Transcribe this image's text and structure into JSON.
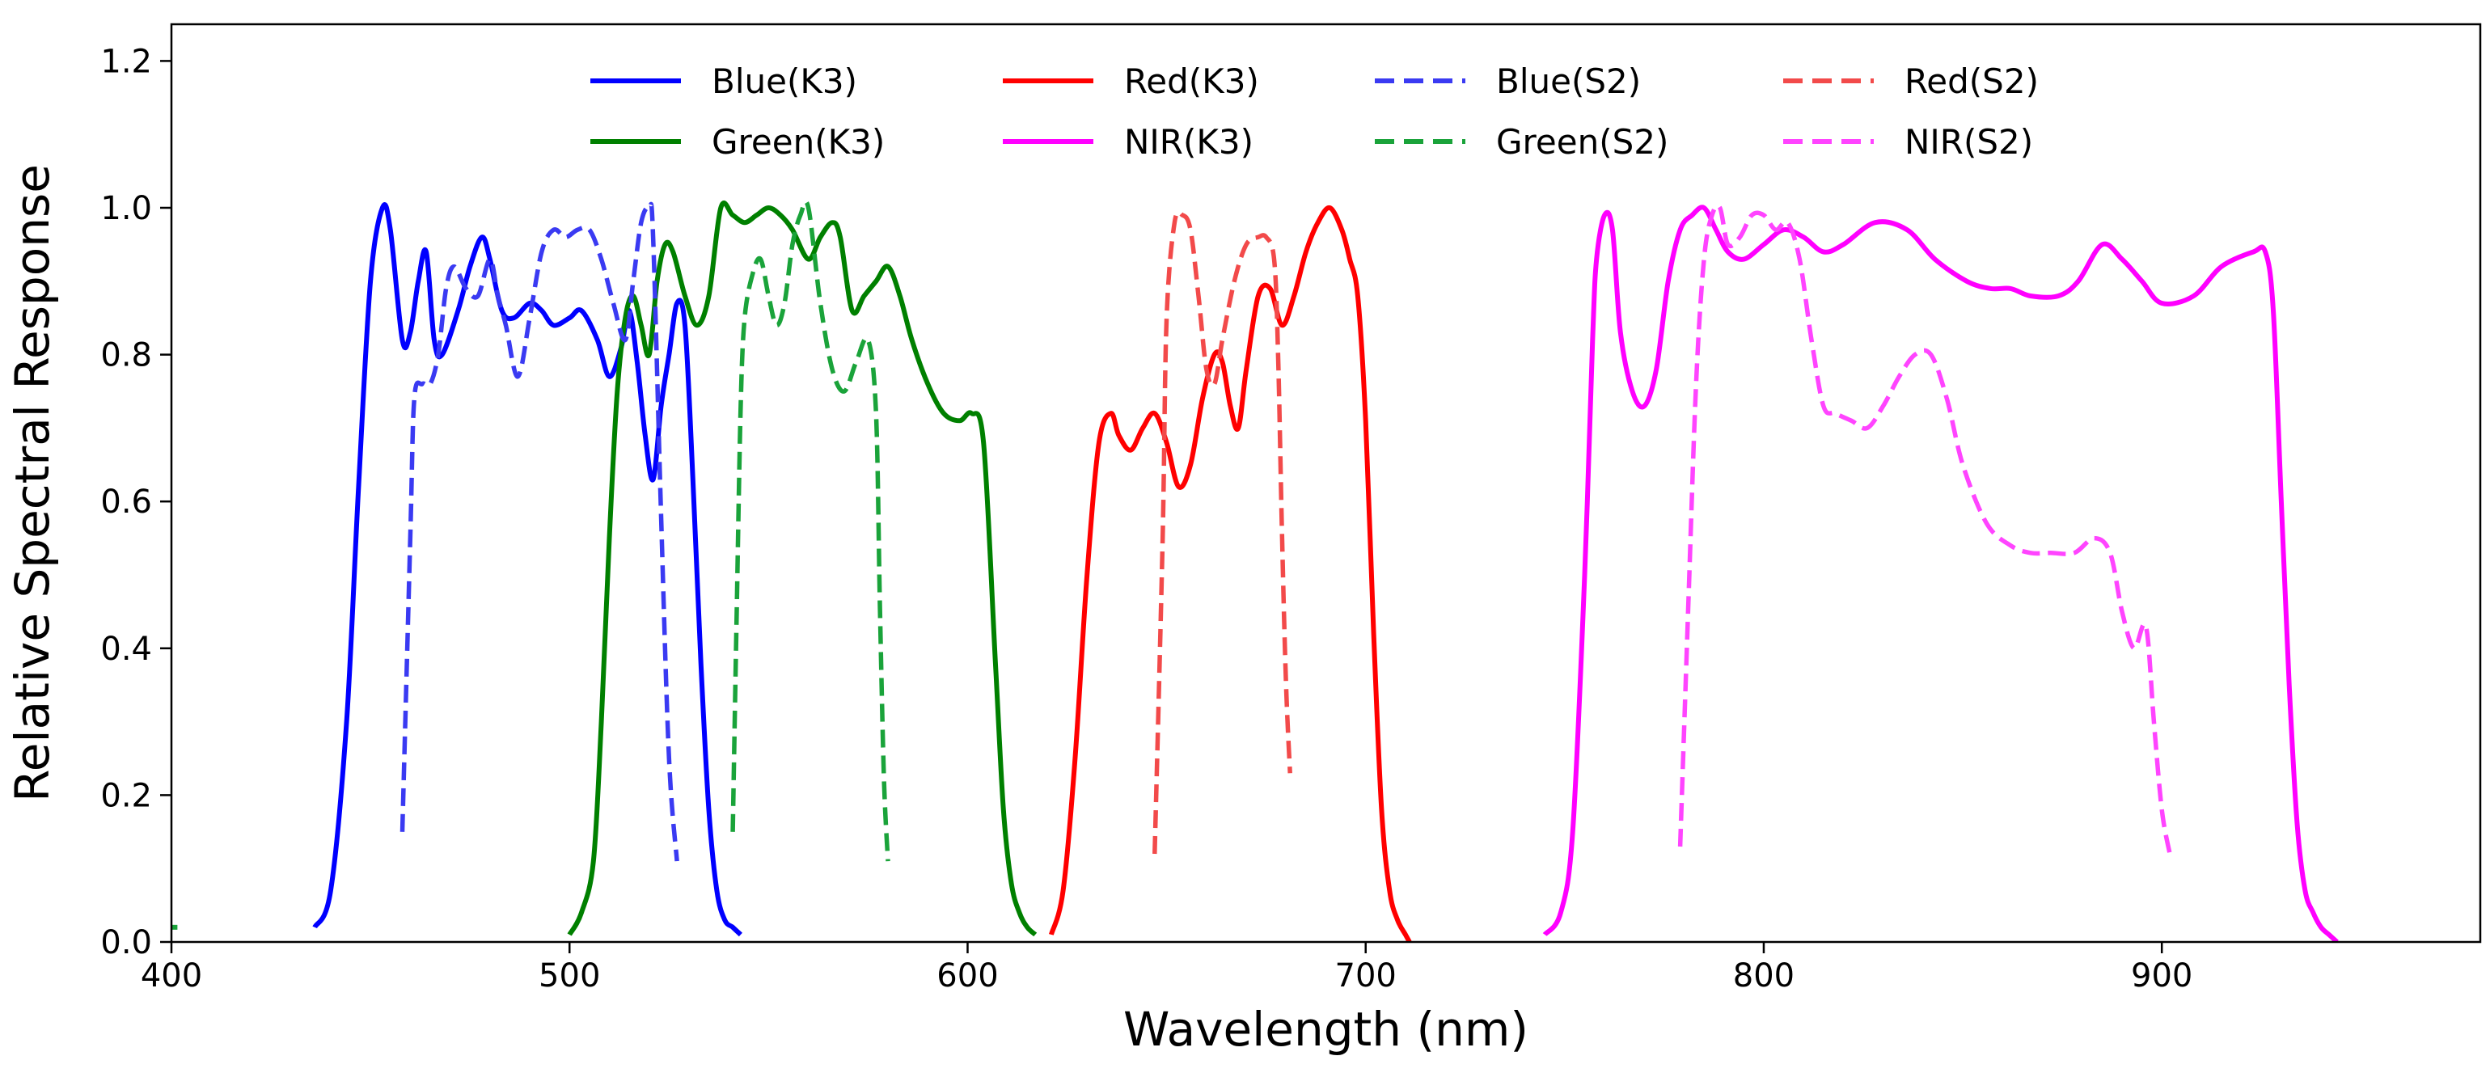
{
  "chart_data": {
    "type": "line",
    "title": "",
    "xlabel": "Wavelength (nm)",
    "ylabel": "Relative Spectral Response",
    "xlim": [
      400,
      980
    ],
    "ylim": [
      0,
      1.25
    ],
    "xticks": [
      400,
      500,
      600,
      700,
      800,
      900
    ],
    "yticks": [
      0.0,
      0.2,
      0.4,
      0.6,
      0.8,
      1.0,
      1.2
    ],
    "xtick_labels": [
      "400",
      "500",
      "600",
      "700",
      "800",
      "900"
    ],
    "ytick_labels": [
      "0.0",
      "0.2",
      "0.4",
      "0.6",
      "0.8",
      "1.0",
      "1.2"
    ],
    "grid": false,
    "legend_position": "top-center",
    "series": [
      {
        "name": "Blue(K3)",
        "color": "#0000ff",
        "style": "solid",
        "x": [
          436,
          440,
          444,
          447,
          450,
          453,
          455,
          458,
          460,
          462,
          464,
          466,
          468,
          472,
          475,
          478,
          480,
          483,
          486,
          490,
          493,
          496,
          500,
          503,
          507,
          510,
          513,
          515,
          517,
          519,
          521,
          523,
          525,
          527,
          529,
          531,
          533,
          535,
          537,
          539,
          541,
          543
        ],
        "y": [
          0.02,
          0.07,
          0.3,
          0.62,
          0.9,
          1.0,
          0.97,
          0.82,
          0.83,
          0.9,
          0.94,
          0.82,
          0.8,
          0.86,
          0.92,
          0.96,
          0.93,
          0.86,
          0.85,
          0.87,
          0.86,
          0.84,
          0.85,
          0.86,
          0.82,
          0.77,
          0.81,
          0.86,
          0.79,
          0.69,
          0.63,
          0.73,
          0.8,
          0.87,
          0.84,
          0.63,
          0.38,
          0.18,
          0.07,
          0.03,
          0.02,
          0.01
        ]
      },
      {
        "name": "Green(K3)",
        "color": "#008000",
        "style": "solid",
        "x": [
          500,
          503,
          506,
          508,
          510,
          512,
          514,
          516,
          518,
          520,
          522,
          524,
          526,
          529,
          532,
          535,
          538,
          541,
          544,
          547,
          550,
          553,
          556,
          560,
          563,
          566,
          568,
          571,
          574,
          577,
          580,
          583,
          586,
          590,
          594,
          598,
          601,
          604,
          607,
          609,
          611,
          613,
          615,
          617
        ],
        "y": [
          0.01,
          0.04,
          0.11,
          0.3,
          0.55,
          0.75,
          0.85,
          0.88,
          0.84,
          0.8,
          0.9,
          0.95,
          0.94,
          0.88,
          0.84,
          0.88,
          1.0,
          0.99,
          0.98,
          0.99,
          1.0,
          0.99,
          0.97,
          0.93,
          0.96,
          0.98,
          0.96,
          0.86,
          0.88,
          0.9,
          0.92,
          0.88,
          0.82,
          0.76,
          0.72,
          0.71,
          0.72,
          0.68,
          0.38,
          0.18,
          0.08,
          0.04,
          0.02,
          0.01
        ]
      },
      {
        "name": "Red(K3)",
        "color": "#ff0000",
        "style": "solid",
        "x": [
          621,
          624,
          627,
          630,
          633,
          636,
          638,
          641,
          644,
          647,
          650,
          653,
          656,
          659,
          662,
          664,
          666,
          668,
          670,
          673,
          676,
          679,
          682,
          685,
          688,
          691,
          694,
          696,
          698,
          700,
          702,
          704,
          706,
          708,
          710,
          711
        ],
        "y": [
          0.01,
          0.07,
          0.25,
          0.5,
          0.68,
          0.72,
          0.69,
          0.67,
          0.7,
          0.72,
          0.68,
          0.62,
          0.65,
          0.74,
          0.8,
          0.79,
          0.73,
          0.7,
          0.78,
          0.88,
          0.89,
          0.84,
          0.88,
          0.94,
          0.98,
          1.0,
          0.97,
          0.93,
          0.88,
          0.71,
          0.42,
          0.18,
          0.07,
          0.03,
          0.01,
          0.0
        ]
      },
      {
        "name": "NIR(K3)",
        "color": "#ff00ff",
        "style": "solid",
        "x": [
          745,
          749,
          752,
          755,
          757,
          758,
          760,
          762,
          764,
          767,
          770,
          773,
          776,
          779,
          782,
          785,
          788,
          791,
          795,
          800,
          805,
          810,
          815,
          820,
          828,
          836,
          843,
          851,
          857,
          862,
          867,
          874,
          879,
          885,
          890,
          895,
          900,
          908,
          915,
          923,
          926,
          928,
          930,
          932,
          934,
          936,
          938,
          940,
          942,
          944
        ],
        "y": [
          0.01,
          0.04,
          0.15,
          0.5,
          0.82,
          0.93,
          0.99,
          0.97,
          0.83,
          0.75,
          0.73,
          0.78,
          0.9,
          0.97,
          0.99,
          1.0,
          0.97,
          0.94,
          0.93,
          0.95,
          0.97,
          0.96,
          0.94,
          0.95,
          0.98,
          0.97,
          0.93,
          0.9,
          0.89,
          0.89,
          0.88,
          0.88,
          0.9,
          0.95,
          0.93,
          0.9,
          0.87,
          0.88,
          0.92,
          0.94,
          0.94,
          0.86,
          0.6,
          0.35,
          0.16,
          0.07,
          0.04,
          0.02,
          0.01,
          0.0
        ]
      },
      {
        "name": "Blue(S2)",
        "color": "#3a3af2",
        "style": "dashed",
        "x": [
          458,
          460,
          461,
          463,
          465,
          467,
          469,
          471,
          474,
          477,
          480,
          482,
          484,
          487,
          490,
          493,
          496,
          499,
          502,
          505,
          508,
          511,
          514,
          516,
          518,
          520,
          521,
          523,
          525,
          527
        ],
        "y": [
          0.15,
          0.55,
          0.74,
          0.76,
          0.76,
          0.8,
          0.89,
          0.92,
          0.89,
          0.88,
          0.93,
          0.88,
          0.84,
          0.77,
          0.85,
          0.94,
          0.97,
          0.96,
          0.97,
          0.97,
          0.93,
          0.87,
          0.82,
          0.9,
          0.98,
          1.0,
          0.96,
          0.58,
          0.25,
          0.11
        ]
      },
      {
        "name": "Green(S2)",
        "color": "#1aa33a",
        "style": "dashed",
        "x": [
          541,
          542,
          543,
          544,
          546,
          548,
          550,
          552,
          554,
          556,
          558,
          560,
          563,
          566,
          569,
          572,
          575,
          577,
          578,
          579,
          580
        ],
        "y": [
          0.15,
          0.45,
          0.73,
          0.85,
          0.91,
          0.93,
          0.88,
          0.84,
          0.87,
          0.95,
          0.99,
          1.0,
          0.87,
          0.78,
          0.75,
          0.79,
          0.82,
          0.72,
          0.45,
          0.22,
          0.11
        ]
      },
      {
        "name": "Red(S2)",
        "color": "#f24a4a",
        "style": "dashed",
        "x": [
          647,
          649,
          650,
          652,
          654,
          656,
          658,
          660,
          662,
          664,
          667,
          670,
          673,
          675,
          677,
          678,
          679,
          680,
          681
        ],
        "y": [
          0.12,
          0.55,
          0.85,
          0.98,
          0.99,
          0.97,
          0.88,
          0.78,
          0.76,
          0.82,
          0.9,
          0.95,
          0.96,
          0.96,
          0.93,
          0.8,
          0.55,
          0.35,
          0.23
        ]
      },
      {
        "name": "NIR(S2)",
        "color": "#ff44ff",
        "style": "dashed",
        "x": [
          779,
          781,
          783,
          785,
          787,
          789,
          791,
          794,
          797,
          800,
          803,
          806,
          809,
          812,
          815,
          818,
          822,
          826,
          830,
          834,
          838,
          842,
          846,
          850,
          856,
          862,
          867,
          872,
          878,
          883,
          887,
          890,
          893,
          896,
          898,
          900,
          902
        ],
        "y": [
          0.13,
          0.45,
          0.76,
          0.93,
          0.99,
          1.0,
          0.95,
          0.96,
          0.99,
          0.99,
          0.97,
          0.98,
          0.93,
          0.82,
          0.73,
          0.72,
          0.71,
          0.7,
          0.73,
          0.77,
          0.8,
          0.8,
          0.74,
          0.65,
          0.57,
          0.54,
          0.53,
          0.53,
          0.53,
          0.55,
          0.53,
          0.45,
          0.4,
          0.43,
          0.3,
          0.18,
          0.12
        ]
      }
    ],
    "legend": [
      {
        "label": "Blue(K3)",
        "color": "#0000ff",
        "style": "solid"
      },
      {
        "label": "Green(K3)",
        "color": "#008000",
        "style": "solid"
      },
      {
        "label": "Red(K3)",
        "color": "#ff0000",
        "style": "solid"
      },
      {
        "label": "NIR(K3)",
        "color": "#ff00ff",
        "style": "solid"
      },
      {
        "label": "Blue(S2)",
        "color": "#3a3af2",
        "style": "dashed"
      },
      {
        "label": "Green(S2)",
        "color": "#1aa33a",
        "style": "dashed"
      },
      {
        "label": "Red(S2)",
        "color": "#f24a4a",
        "style": "dashed"
      },
      {
        "label": "NIR(S2)",
        "color": "#ff44ff",
        "style": "dashed"
      }
    ]
  }
}
